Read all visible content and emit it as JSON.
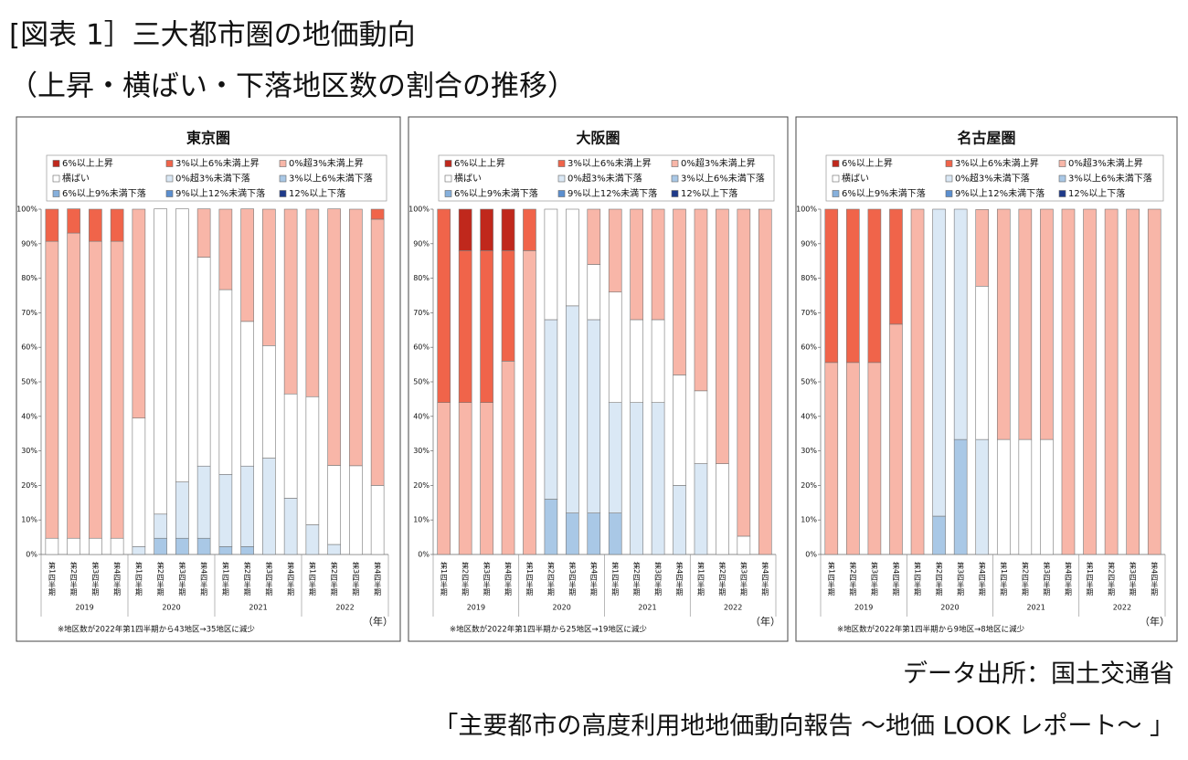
{
  "header": {
    "title": [
      "[図表 1］三大都市圏の地価動向",
      "（上昇・横ばい・下落地区数の割合の推移）"
    ]
  },
  "source": [
    "データ出所：国土交通省",
    "「主要都市の高度利用地地価動向報告 ～地価 LOOK レポート～ 」"
  ],
  "chart_data": [
    {
      "type": "bar",
      "stacked": true,
      "title": "東京圏",
      "note": "※地区数が2022年第1四半期から43地区→35地区に減少",
      "x_unit_label": "（年）",
      "categories": [
        "第1四半期",
        "第2四半期",
        "第3四半期",
        "第4四半期",
        "第1四半期",
        "第2四半期",
        "第3四半期",
        "第4四半期",
        "第1四半期",
        "第2四半期",
        "第3四半期",
        "第4四半期",
        "第1四半期",
        "第2四半期",
        "第3四半期",
        "第4四半期"
      ],
      "groups": [
        "2019",
        "2020",
        "2021",
        "2022"
      ],
      "ylim": [
        0,
        100
      ],
      "yticks": [
        {
          "value": 0,
          "label": "0%"
        },
        {
          "value": 10,
          "label": "10%"
        },
        {
          "value": 20,
          "label": "20%"
        },
        {
          "value": 30,
          "label": "30%"
        },
        {
          "value": 40,
          "label": "40%"
        },
        {
          "value": 50,
          "label": "50%"
        },
        {
          "value": 60,
          "label": "60%"
        },
        {
          "value": 70,
          "label": "70%"
        },
        {
          "value": 80,
          "label": "80%"
        },
        {
          "value": 90,
          "label": "90%"
        },
        {
          "value": 100,
          "label": "100%"
        }
      ],
      "series": [
        {
          "name": "6%以上上昇",
          "color": "#c0281c",
          "values": [
            0,
            0,
            0,
            0,
            0,
            0,
            0,
            0,
            0,
            0,
            0,
            0,
            0,
            0,
            0,
            0
          ]
        },
        {
          "name": "3%以上6%未満上昇",
          "color": "#f0644a",
          "values": [
            9.3,
            7.0,
            9.3,
            9.3,
            0,
            0,
            0,
            0,
            0,
            0,
            0,
            0,
            0,
            0,
            0,
            2.9
          ]
        },
        {
          "name": "0%超3%未満上昇",
          "color": "#f8b6a8",
          "values": [
            86.0,
            88.4,
            86.0,
            86.0,
            60.5,
            0,
            0,
            14.0,
            23.3,
            32.6,
            39.5,
            53.5,
            54.3,
            74.3,
            74.3,
            77.1
          ]
        },
        {
          "name": "横ばい",
          "color": "#ffffff",
          "values": [
            4.7,
            4.7,
            4.7,
            4.7,
            37.2,
            88.4,
            79.1,
            60.5,
            53.5,
            41.9,
            32.6,
            30.2,
            37.1,
            22.9,
            25.7,
            20.0
          ]
        },
        {
          "name": "0%超3%未満下落",
          "color": "#dae8f5",
          "values": [
            0,
            0,
            0,
            0,
            2.3,
            7.0,
            16.3,
            20.9,
            20.9,
            23.3,
            27.9,
            16.3,
            8.6,
            2.9,
            0,
            0
          ]
        },
        {
          "name": "3%以上6%未満下落",
          "color": "#a9c8e6",
          "values": [
            0,
            0,
            0,
            0,
            0,
            4.7,
            4.7,
            4.7,
            2.3,
            2.3,
            0,
            0,
            0,
            0,
            0,
            0
          ]
        },
        {
          "name": "6%以上9%未満下落",
          "color": "#86b0dc",
          "values": [
            0,
            0,
            0,
            0,
            0,
            0,
            0,
            0,
            0,
            0,
            0,
            0,
            0,
            0,
            0,
            0
          ]
        },
        {
          "name": "9%以上12%未満下落",
          "color": "#5b8fcf",
          "values": [
            0,
            0,
            0,
            0,
            0,
            0,
            0,
            0,
            0,
            0,
            0,
            0,
            0,
            0,
            0,
            0
          ]
        },
        {
          "name": "12%以上下落",
          "color": "#1f3a8a",
          "values": [
            0,
            0,
            0,
            0,
            0,
            0,
            0,
            0,
            0,
            0,
            0,
            0,
            0,
            0,
            0,
            0
          ]
        }
      ]
    },
    {
      "type": "bar",
      "stacked": true,
      "title": "大阪圏",
      "note": "※地区数が2022年第1四半期から25地区→19地区に減少",
      "x_unit_label": "（年）",
      "categories": [
        "第1四半期",
        "第2四半期",
        "第3四半期",
        "第4四半期",
        "第1四半期",
        "第2四半期",
        "第3四半期",
        "第4四半期",
        "第1四半期",
        "第2四半期",
        "第3四半期",
        "第4四半期",
        "第1四半期",
        "第2四半期",
        "第3四半期",
        "第4四半期"
      ],
      "groups": [
        "2019",
        "2020",
        "2021",
        "2022"
      ],
      "ylim": [
        0,
        100
      ],
      "yticks": [
        {
          "value": 0,
          "label": "0%"
        },
        {
          "value": 10,
          "label": "10%"
        },
        {
          "value": 20,
          "label": "20%"
        },
        {
          "value": 30,
          "label": "30%"
        },
        {
          "value": 40,
          "label": "40%"
        },
        {
          "value": 50,
          "label": "50%"
        },
        {
          "value": 60,
          "label": "60%"
        },
        {
          "value": 70,
          "label": "70%"
        },
        {
          "value": 80,
          "label": "80%"
        },
        {
          "value": 90,
          "label": "90%"
        },
        {
          "value": 100,
          "label": "100%"
        }
      ],
      "series": [
        {
          "name": "6%以上上昇",
          "color": "#c0281c",
          "values": [
            0,
            12,
            12,
            12,
            0,
            0,
            0,
            0,
            0,
            0,
            0,
            0,
            0,
            0,
            0,
            0
          ]
        },
        {
          "name": "3%以上6%未満上昇",
          "color": "#f0644a",
          "values": [
            56,
            44,
            44,
            32,
            12,
            0,
            0,
            0,
            0,
            0,
            0,
            0,
            0,
            0,
            0,
            0
          ]
        },
        {
          "name": "0%超3%未満上昇",
          "color": "#f8b6a8",
          "values": [
            44,
            44,
            44,
            56,
            88,
            0,
            0,
            16,
            24,
            32,
            32,
            48,
            52.6,
            73.7,
            94.7,
            100
          ]
        },
        {
          "name": "横ばい",
          "color": "#ffffff",
          "values": [
            0,
            0,
            0,
            0,
            0,
            32,
            28,
            16,
            32,
            24,
            24,
            32,
            21.1,
            26.3,
            5.3,
            0
          ]
        },
        {
          "name": "0%超3%未満下落",
          "color": "#dae8f5",
          "values": [
            0,
            0,
            0,
            0,
            0,
            52,
            60,
            56,
            32,
            44,
            44,
            20,
            26.3,
            0,
            0,
            0
          ]
        },
        {
          "name": "3%以上6%未満下落",
          "color": "#a9c8e6",
          "values": [
            0,
            0,
            0,
            0,
            0,
            16,
            12,
            12,
            12,
            0,
            0,
            0,
            0,
            0,
            0,
            0
          ]
        },
        {
          "name": "6%以上9%未満下落",
          "color": "#86b0dc",
          "values": [
            0,
            0,
            0,
            0,
            0,
            0,
            0,
            0,
            0,
            0,
            0,
            0,
            0,
            0,
            0,
            0
          ]
        },
        {
          "name": "9%以上12%未満下落",
          "color": "#5b8fcf",
          "values": [
            0,
            0,
            0,
            0,
            0,
            0,
            0,
            0,
            0,
            0,
            0,
            0,
            0,
            0,
            0,
            0
          ]
        },
        {
          "name": "12%以上下落",
          "color": "#1f3a8a",
          "values": [
            0,
            0,
            0,
            0,
            0,
            0,
            0,
            0,
            0,
            0,
            0,
            0,
            0,
            0,
            0,
            0
          ]
        }
      ]
    },
    {
      "type": "bar",
      "stacked": true,
      "title": "名古屋圏",
      "note": "※地区数が2022年第1四半期から9地区→8地区に減少",
      "x_unit_label": "（年）",
      "categories": [
        "第1四半期",
        "第2四半期",
        "第3四半期",
        "第4四半期",
        "第1四半期",
        "第2四半期",
        "第3四半期",
        "第4四半期",
        "第1四半期",
        "第2四半期",
        "第3四半期",
        "第4四半期",
        "第1四半期",
        "第2四半期",
        "第3四半期",
        "第4四半期"
      ],
      "groups": [
        "2019",
        "2020",
        "2021",
        "2022"
      ],
      "ylim": [
        0,
        100
      ],
      "yticks": [
        {
          "value": 0,
          "label": "0%"
        },
        {
          "value": 10,
          "label": "10%"
        },
        {
          "value": 20,
          "label": "20%"
        },
        {
          "value": 30,
          "label": "30%"
        },
        {
          "value": 40,
          "label": "40%"
        },
        {
          "value": 50,
          "label": "50%"
        },
        {
          "value": 60,
          "label": "60%"
        },
        {
          "value": 70,
          "label": "70%"
        },
        {
          "value": 80,
          "label": "80%"
        },
        {
          "value": 90,
          "label": "90%"
        },
        {
          "value": 100,
          "label": "100%"
        }
      ],
      "series": [
        {
          "name": "6%以上上昇",
          "color": "#c0281c",
          "values": [
            0,
            0,
            0,
            0,
            0,
            0,
            0,
            0,
            0,
            0,
            0,
            0,
            0,
            0,
            0,
            0
          ]
        },
        {
          "name": "3%以上6%未満上昇",
          "color": "#f0644a",
          "values": [
            44.4,
            44.4,
            44.4,
            33.3,
            0,
            0,
            0,
            0,
            0,
            0,
            0,
            0,
            0,
            0,
            0,
            0
          ]
        },
        {
          "name": "0%超3%未満上昇",
          "color": "#f8b6a8",
          "values": [
            55.6,
            55.6,
            55.6,
            66.7,
            100,
            0,
            0,
            22.2,
            66.7,
            66.7,
            66.7,
            100,
            100,
            100,
            100,
            100
          ]
        },
        {
          "name": "横ばい",
          "color": "#ffffff",
          "values": [
            0,
            0,
            0,
            0,
            0,
            0,
            0,
            44.4,
            33.3,
            33.3,
            33.3,
            0,
            0,
            0,
            0,
            0
          ]
        },
        {
          "name": "0%超3%未満下落",
          "color": "#dae8f5",
          "values": [
            0,
            0,
            0,
            0,
            0,
            88.9,
            66.7,
            33.3,
            0,
            0,
            0,
            0,
            0,
            0,
            0,
            0
          ]
        },
        {
          "name": "3%以上6%未満下落",
          "color": "#a9c8e6",
          "values": [
            0,
            0,
            0,
            0,
            0,
            11.1,
            33.3,
            0,
            0,
            0,
            0,
            0,
            0,
            0,
            0,
            0
          ]
        },
        {
          "name": "6%以上9%未満下落",
          "color": "#86b0dc",
          "values": [
            0,
            0,
            0,
            0,
            0,
            0,
            0,
            0,
            0,
            0,
            0,
            0,
            0,
            0,
            0,
            0
          ]
        },
        {
          "name": "9%以上12%未満下落",
          "color": "#5b8fcf",
          "values": [
            0,
            0,
            0,
            0,
            0,
            0,
            0,
            0,
            0,
            0,
            0,
            0,
            0,
            0,
            0,
            0
          ]
        },
        {
          "name": "12%以上下落",
          "color": "#1f3a8a",
          "values": [
            0,
            0,
            0,
            0,
            0,
            0,
            0,
            0,
            0,
            0,
            0,
            0,
            0,
            0,
            0,
            0
          ]
        }
      ]
    }
  ]
}
